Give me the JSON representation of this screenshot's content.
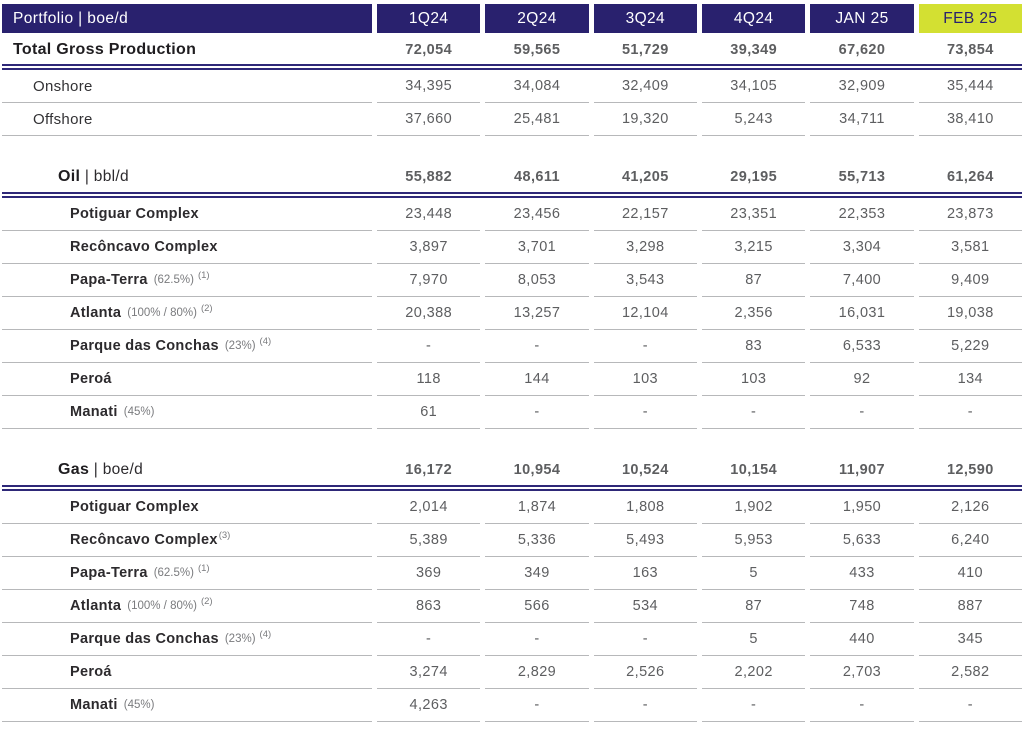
{
  "title": "Portfolio | boe/d",
  "columns": [
    "1Q24",
    "2Q24",
    "3Q24",
    "4Q24",
    "JAN 25",
    "FEB 25"
  ],
  "highlighted_column": "FEB 25",
  "colors": {
    "header_bg": "#29216e",
    "highlight_bg": "#d3e032",
    "highlight_text": "#29216e",
    "double_line": "#2e2878",
    "row_line": "#b7b8ba",
    "value_text": "#5d5e60",
    "note_text": "#7a7b7e"
  },
  "total_row": {
    "label": "Total Gross Production",
    "values": [
      "72,054",
      "59,565",
      "51,729",
      "39,349",
      "67,620",
      "73,854"
    ]
  },
  "top_rows": [
    {
      "name": "Onshore",
      "values": [
        "34,395",
        "34,084",
        "32,409",
        "34,105",
        "32,909",
        "35,444"
      ]
    },
    {
      "name": "Offshore",
      "values": [
        "37,660",
        "25,481",
        "19,320",
        "5,243",
        "34,711",
        "38,410"
      ]
    }
  ],
  "sections": [
    {
      "title_main": "Oil",
      "title_unit": " | bbl/d",
      "totals": [
        "55,882",
        "48,611",
        "41,205",
        "29,195",
        "55,713",
        "61,264"
      ],
      "rows": [
        {
          "name": "Potiguar Complex",
          "values": [
            "23,448",
            "23,456",
            "22,157",
            "23,351",
            "22,353",
            "23,873"
          ]
        },
        {
          "name": "Recôncavo Complex",
          "values": [
            "3,897",
            "3,701",
            "3,298",
            "3,215",
            "3,304",
            "3,581"
          ]
        },
        {
          "name": "Papa-Terra",
          "note": "(62.5%)",
          "sup": "(1)",
          "values": [
            "7,970",
            "8,053",
            "3,543",
            "87",
            "7,400",
            "9,409"
          ]
        },
        {
          "name": "Atlanta",
          "note": "(100% / 80%)",
          "sup": "(2)",
          "values": [
            "20,388",
            "13,257",
            "12,104",
            "2,356",
            "16,031",
            "19,038"
          ]
        },
        {
          "name": "Parque das Conchas",
          "note": "(23%)",
          "sup": "(4)",
          "values": [
            "-",
            "-",
            "-",
            "83",
            "6,533",
            "5,229"
          ]
        },
        {
          "name": "Peroá",
          "values": [
            "118",
            "144",
            "103",
            "103",
            "92",
            "134"
          ]
        },
        {
          "name": "Manati",
          "note": "(45%)",
          "values": [
            "61",
            "-",
            "-",
            "-",
            "-",
            "-"
          ]
        }
      ]
    },
    {
      "title_main": "Gas",
      "title_unit": " | boe/d",
      "totals": [
        "16,172",
        "10,954",
        "10,524",
        "10,154",
        "11,907",
        "12,590"
      ],
      "rows": [
        {
          "name": "Potiguar Complex",
          "values": [
            "2,014",
            "1,874",
            "1,808",
            "1,902",
            "1,950",
            "2,126"
          ]
        },
        {
          "name": "Recôncavo Complex",
          "sup_attached": "(3)",
          "values": [
            "5,389",
            "5,336",
            "5,493",
            "5,953",
            "5,633",
            "6,240"
          ]
        },
        {
          "name": "Papa-Terra",
          "note": "(62.5%)",
          "sup": "(1)",
          "values": [
            "369",
            "349",
            "163",
            "5",
            "433",
            "410"
          ]
        },
        {
          "name": "Atlanta",
          "note": "(100% / 80%)",
          "sup": "(2)",
          "values": [
            "863",
            "566",
            "534",
            "87",
            "748",
            "887"
          ]
        },
        {
          "name": "Parque das Conchas",
          "note": "(23%)",
          "sup": "(4)",
          "values": [
            "-",
            "-",
            "-",
            "5",
            "440",
            "345"
          ]
        },
        {
          "name": "Peroá",
          "values": [
            "3,274",
            "2,829",
            "2,526",
            "2,202",
            "2,703",
            "2,582"
          ]
        },
        {
          "name": "Manati",
          "note": "(45%)",
          "values": [
            "4,263",
            "-",
            "-",
            "-",
            "-",
            "-"
          ]
        }
      ]
    }
  ]
}
